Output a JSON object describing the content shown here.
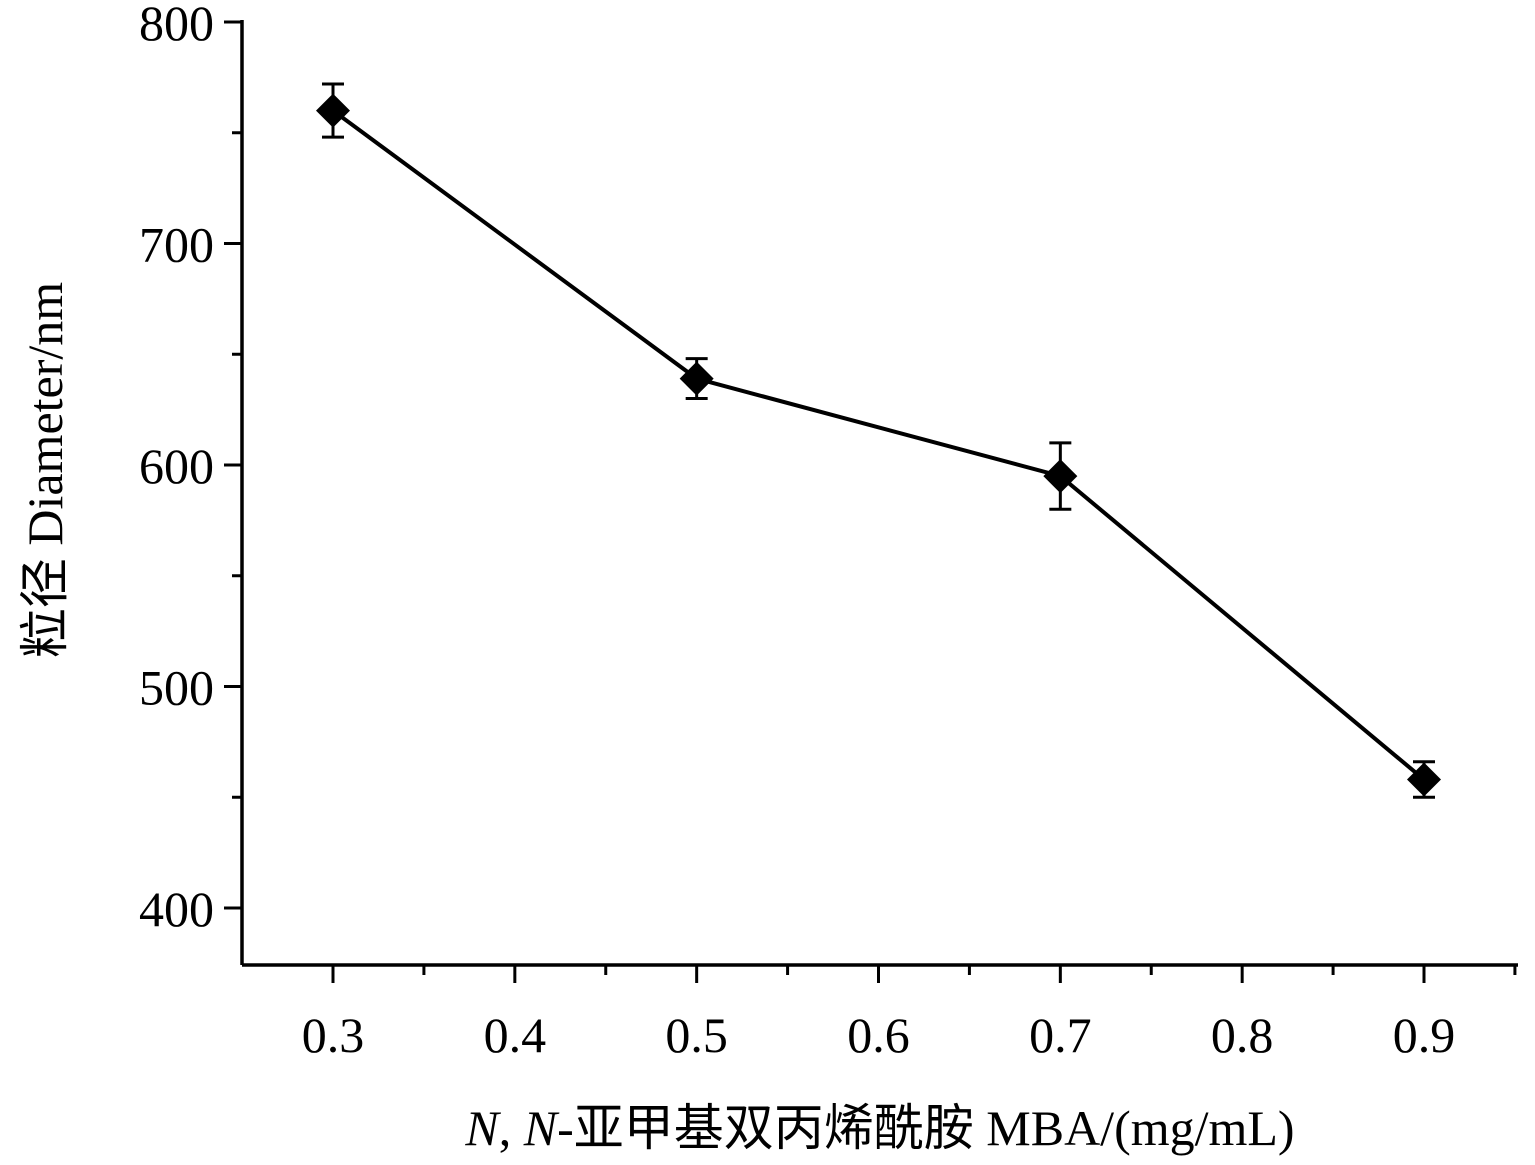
{
  "chart_data": {
    "type": "line",
    "title": "",
    "xlabel_prefix": "N",
    "xlabel_sep": ", ",
    "xlabel_prefix2": "N",
    "xlabel_rest": "-亚甲基双丙烯酰胺 MBA/(mg/mL)",
    "ylabel": "粒径 Diameter/nm",
    "xlim": [
      0.25,
      0.95
    ],
    "ylim": [
      375,
      800
    ],
    "xticks": [
      0.3,
      0.4,
      0.5,
      0.6,
      0.7,
      0.8,
      0.9
    ],
    "xtick_labels": [
      "0.3",
      "0.4",
      "0.5",
      "0.6",
      "0.7",
      "0.8",
      "0.9"
    ],
    "yticks": [
      400,
      500,
      600,
      700,
      800
    ],
    "ytick_labels": [
      "400",
      "500",
      "600",
      "700",
      "800"
    ],
    "y_minor_ticks": [
      450,
      550,
      650,
      750
    ],
    "x_minor_ticks": [
      0.35,
      0.45,
      0.55,
      0.65,
      0.75,
      0.85,
      0.95
    ],
    "grid": false,
    "series": [
      {
        "marker": "diamond",
        "color": "#000000",
        "x": [
          0.3,
          0.5,
          0.7,
          0.9
        ],
        "y": [
          760,
          639,
          595,
          458
        ],
        "error": [
          12,
          9,
          15,
          8
        ]
      }
    ]
  }
}
